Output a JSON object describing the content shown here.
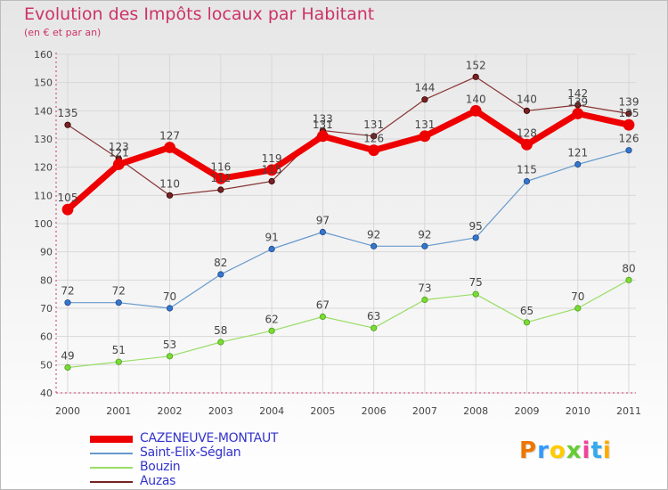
{
  "title": "Evolution des Impôts locaux par Habitant",
  "subtitle": "(en € et par an)",
  "logo": {
    "text": "Proxiti",
    "colors": [
      "#ee7700",
      "#3399ff",
      "#ffcc00",
      "#66cc33",
      "#ee4499",
      "#33aaee",
      "#ffaa00"
    ]
  },
  "chart_data": {
    "type": "line",
    "title": "Evolution des Impôts locaux par Habitant",
    "subtitle": "(en € et par an)",
    "xlabel": "",
    "ylabel": "",
    "categories": [
      "2000",
      "2001",
      "2002",
      "2003",
      "2004",
      "2005",
      "2006",
      "2007",
      "2008",
      "2009",
      "2010",
      "2011"
    ],
    "ylim": [
      40,
      160
    ],
    "yticks": [
      40,
      50,
      60,
      70,
      80,
      90,
      100,
      110,
      120,
      130,
      140,
      150,
      160
    ],
    "grid": true,
    "legend_position": "bottom-left",
    "series": [
      {
        "name": "CAZENEUVE-MONTAUT",
        "color": "#ee0000",
        "values": [
          105,
          121,
          127,
          116,
          119,
          131,
          126,
          131,
          140,
          128,
          139,
          135
        ]
      },
      {
        "name": "Saint-Elix-Séglan",
        "color": "#6699cc",
        "values": [
          72,
          72,
          70,
          82,
          91,
          97,
          92,
          92,
          95,
          115,
          121,
          126
        ]
      },
      {
        "name": "Bouzin",
        "color": "#99dd66",
        "values": [
          49,
          51,
          53,
          58,
          62,
          67,
          63,
          73,
          75,
          65,
          70,
          80
        ]
      },
      {
        "name": "Auzas",
        "color": "#772222",
        "values": [
          135,
          123,
          110,
          112,
          115,
          133,
          131,
          144,
          152,
          140,
          142,
          139
        ]
      }
    ]
  }
}
